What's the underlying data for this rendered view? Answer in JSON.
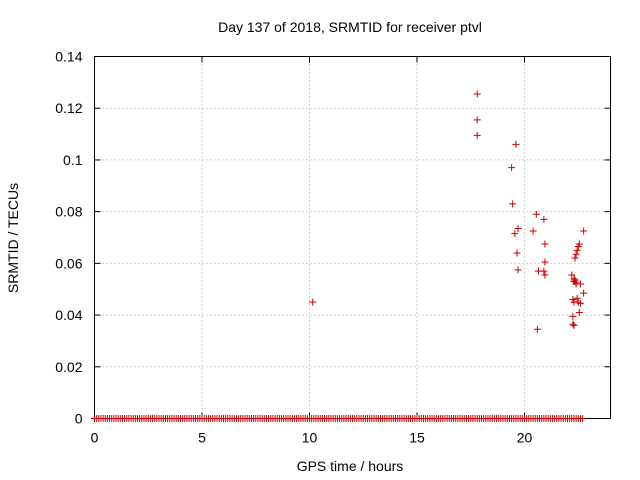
{
  "chart_data": {
    "type": "scatter",
    "title": "Day 137 of 2018, SRMTID for receiver ptvl",
    "xlabel": "GPS time / hours",
    "ylabel": "SRMTID / TECUs",
    "xlim": [
      0,
      24
    ],
    "ylim": [
      0,
      0.14
    ],
    "xticks": [
      0,
      5,
      10,
      15,
      20
    ],
    "yticks": [
      0,
      0.02,
      0.04,
      0.06,
      0.08,
      0.1,
      0.12,
      0.14
    ],
    "xtick_labels": [
      "0",
      "5",
      "10",
      "15",
      "20"
    ],
    "ytick_labels": [
      "0",
      "0.02",
      "0.04",
      "0.06",
      "0.08",
      "0.1",
      "0.12",
      "0.14"
    ],
    "grid": true,
    "marker": "plus",
    "color": "#cc0000",
    "zero_baseline": {
      "x_start": 0.0,
      "x_end": 22.7,
      "x_step": 0.1,
      "y": 0
    },
    "points": [
      [
        10.15,
        0.045
      ],
      [
        17.8,
        0.1255
      ],
      [
        17.8,
        0.1155
      ],
      [
        17.8,
        0.1095
      ],
      [
        19.4,
        0.097
      ],
      [
        19.45,
        0.083
      ],
      [
        19.55,
        0.0715
      ],
      [
        19.7,
        0.0735
      ],
      [
        19.6,
        0.106
      ],
      [
        19.65,
        0.064
      ],
      [
        19.7,
        0.0575
      ],
      [
        20.4,
        0.0725
      ],
      [
        20.55,
        0.079
      ],
      [
        20.65,
        0.057
      ],
      [
        20.6,
        0.0345
      ],
      [
        20.9,
        0.077
      ],
      [
        20.95,
        0.0675
      ],
      [
        20.95,
        0.0605
      ],
      [
        20.9,
        0.057
      ],
      [
        20.95,
        0.0555
      ],
      [
        22.2,
        0.0555
      ],
      [
        22.3,
        0.054
      ],
      [
        22.35,
        0.0535
      ],
      [
        22.3,
        0.053
      ],
      [
        22.4,
        0.052
      ],
      [
        22.4,
        0.0525
      ],
      [
        22.35,
        0.062
      ],
      [
        22.4,
        0.0635
      ],
      [
        22.45,
        0.065
      ],
      [
        22.5,
        0.0665
      ],
      [
        22.55,
        0.0675
      ],
      [
        22.25,
        0.046
      ],
      [
        22.3,
        0.045
      ],
      [
        22.45,
        0.0465
      ],
      [
        22.5,
        0.045
      ],
      [
        22.6,
        0.0445
      ],
      [
        22.25,
        0.0395
      ],
      [
        22.25,
        0.0365
      ],
      [
        22.3,
        0.036
      ],
      [
        22.55,
        0.041
      ],
      [
        22.75,
        0.0725
      ],
      [
        22.75,
        0.0485
      ],
      [
        22.6,
        0.052
      ]
    ]
  }
}
